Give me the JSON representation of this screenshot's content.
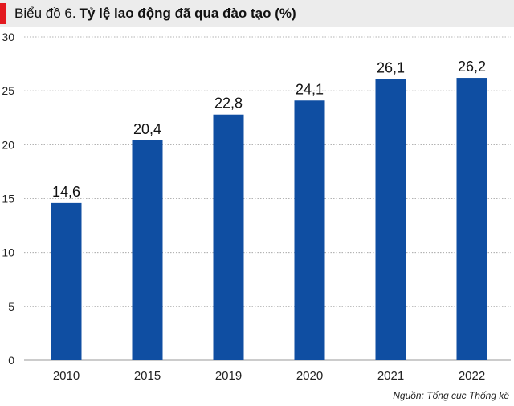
{
  "header": {
    "prefix": "Biểu đồ 6.",
    "title": "Tỷ lệ lao động đã qua đào tạo (%)"
  },
  "source": "Nguồn: Tổng cục Thống kê",
  "colors": {
    "bar": "#0f4ea2",
    "accent": "#e3191f",
    "header_bg": "#ececec",
    "grid": "#9a9a9a"
  },
  "chart_data": {
    "type": "bar",
    "title": "Tỷ lệ lao động đã qua đào tạo (%)",
    "xlabel": "",
    "ylabel": "",
    "categories": [
      "2010",
      "2015",
      "2019",
      "2020",
      "2021",
      "2022"
    ],
    "values": [
      14.6,
      20.4,
      22.8,
      24.1,
      26.1,
      26.2
    ],
    "value_labels": [
      "14,6",
      "20,4",
      "22,8",
      "24,1",
      "26,1",
      "26,2"
    ],
    "ylim": [
      0,
      30
    ],
    "yticks": [
      0,
      5,
      10,
      15,
      20,
      25,
      30
    ],
    "grid": true
  }
}
